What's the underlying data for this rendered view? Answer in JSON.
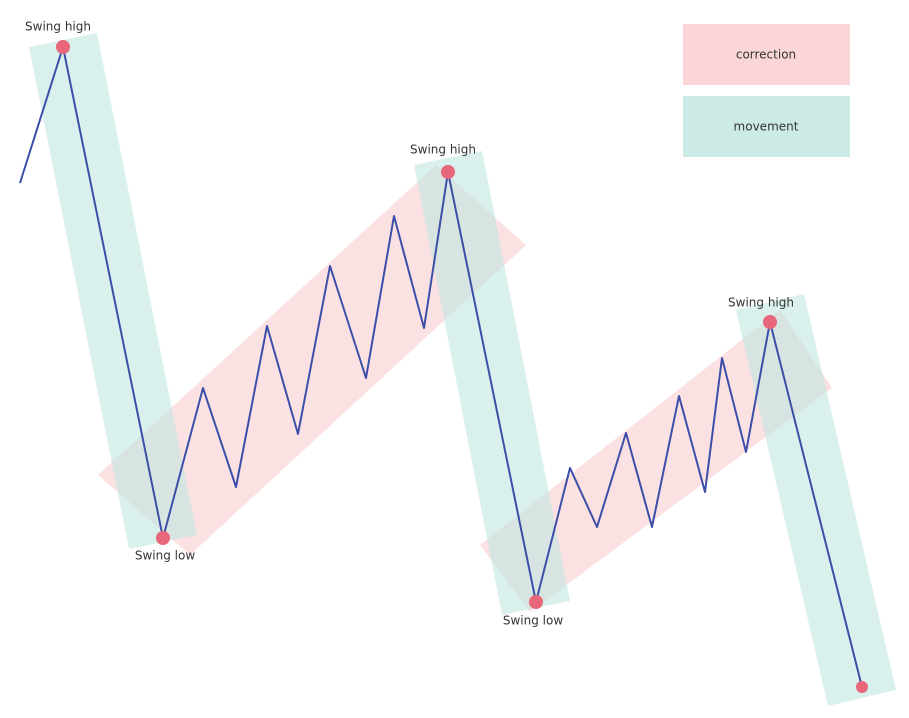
{
  "swing_labels": [
    "Swing high",
    "Swing low",
    "Swing high",
    "Swing low",
    "Swing high"
  ],
  "legend": [
    "correction",
    "movement"
  ]
}
